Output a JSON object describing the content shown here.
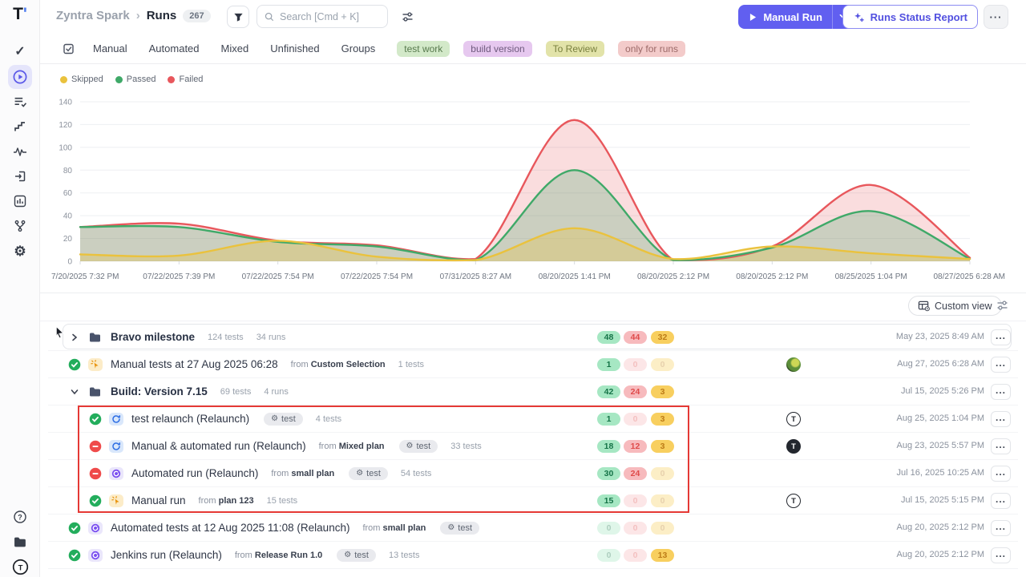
{
  "app": {
    "logo_letter": "T",
    "accent_color": "#615ff0"
  },
  "sidebar": {
    "items": [
      {
        "name": "tests",
        "icon": "check-icon",
        "active": false
      },
      {
        "name": "runs",
        "icon": "play-circle-icon",
        "active": true
      },
      {
        "name": "plans",
        "icon": "list-check-icon",
        "active": false
      },
      {
        "name": "steps",
        "icon": "steps-icon",
        "active": false
      },
      {
        "name": "pulse",
        "icon": "pulse-icon",
        "active": false
      },
      {
        "name": "imports",
        "icon": "sign-in-icon",
        "active": false
      },
      {
        "name": "analytics",
        "icon": "bar-chart-icon",
        "active": false
      },
      {
        "name": "branches",
        "icon": "branch-icon",
        "active": false
      },
      {
        "name": "settings",
        "icon": "gear-icon",
        "active": false
      }
    ],
    "bottom": [
      {
        "name": "help",
        "icon": "question-circle-icon"
      },
      {
        "name": "projects",
        "icon": "folder-icon"
      },
      {
        "name": "profile",
        "icon": "logo-badge-icon"
      }
    ]
  },
  "header": {
    "breadcrumb": {
      "project": "Zyntra Spark",
      "separator": "›",
      "page": "Runs",
      "count": "267"
    },
    "search": {
      "placeholder": "Search [Cmd + K]"
    },
    "buttons": {
      "manual_run": "Manual Run",
      "runs_status_report": "Runs Status Report",
      "more": "···"
    }
  },
  "tabs": {
    "items": [
      "Manual",
      "Automated",
      "Mixed",
      "Unfinished",
      "Groups"
    ],
    "tags": [
      {
        "label": "test work",
        "bg": "#d3e9c9",
        "color": "#587a4e"
      },
      {
        "label": "build version",
        "bg": "#e6c8ef",
        "color": "#6e5a7d"
      },
      {
        "label": "To Review",
        "bg": "#e2e3a9",
        "color": "#79803f"
      },
      {
        "label": "only for runs",
        "bg": "#f3cbca",
        "color": "#9c6a68"
      }
    ]
  },
  "chart_data": {
    "type": "area",
    "x_labels": [
      "7/20/2025 7:32 PM",
      "07/22/2025 7:39 PM",
      "07/22/2025 7:54 PM",
      "07/22/2025 7:54 PM",
      "07/31/2025 8:27 AM",
      "08/20/2025 1:41 PM",
      "08/20/2025 2:12 PM",
      "08/20/2025 2:12 PM",
      "08/25/2025 1:04 PM",
      "08/27/2025 6:28 AM"
    ],
    "yticks": [
      0,
      20,
      40,
      60,
      80,
      100,
      120,
      140
    ],
    "ylim": [
      0,
      140
    ],
    "grid": "horizontal",
    "legend_position": "top-left",
    "series": [
      {
        "name": "Skipped",
        "color": "#eac23d",
        "fill_opacity": 0.3,
        "values": [
          6,
          5,
          18,
          4,
          1,
          29,
          2,
          13,
          7,
          2
        ]
      },
      {
        "name": "Passed",
        "color": "#3fa968",
        "fill_opacity": 0.25,
        "values": [
          30,
          30,
          17,
          13,
          1,
          80,
          1,
          12,
          44,
          2
        ]
      },
      {
        "name": "Failed",
        "color": "#e8575c",
        "fill_opacity": 0.2,
        "values": [
          30,
          33,
          18,
          14,
          2,
          124,
          1,
          13,
          67,
          3
        ]
      }
    ]
  },
  "toolbar": {
    "custom_view": "Custom view"
  },
  "runs": {
    "rows": [
      {
        "kind": "folder",
        "chevron": "collapsed",
        "icon": "folder",
        "title": "Bravo milestone",
        "meta_tests": "124 tests",
        "meta_runs": "34 runs",
        "badges": [
          48,
          44,
          32
        ],
        "avatar": null,
        "date": "May 23, 2025 8:49 AM",
        "hover": true,
        "nested": false
      },
      {
        "kind": "run",
        "status": "passed",
        "icon": "manual",
        "title": "Manual tests at 27 Aug 2025 06:28",
        "from_plan": "Custom Selection",
        "tests": "1 tests",
        "badges": [
          1,
          0,
          0
        ],
        "avatar": "photo",
        "date": "Aug 27, 2025 6:28 AM",
        "nested": false
      },
      {
        "kind": "folder",
        "chevron": "expanded",
        "icon": "folder",
        "title": "Build: Version 7.15",
        "meta_tests": "69 tests",
        "meta_runs": "4 runs",
        "badges": [
          42,
          24,
          3
        ],
        "avatar": null,
        "date": "Jul 15, 2025 5:26 PM",
        "nested": false
      },
      {
        "kind": "run",
        "status": "passed",
        "icon": "relaunch",
        "title": "test relaunch (Relaunch)",
        "tag": "test",
        "tests": "4 tests",
        "badges": [
          1,
          0,
          3
        ],
        "avatar": "t-light",
        "date": "Aug 25, 2025 1:04 PM",
        "nested": true
      },
      {
        "kind": "run",
        "status": "failed",
        "icon": "relaunch",
        "title": "Manual & automated run (Relaunch)",
        "from_plan": "Mixed plan",
        "tag": "test",
        "tests": "33 tests",
        "badges": [
          18,
          12,
          3
        ],
        "avatar": "t-dark",
        "date": "Aug 23, 2025 5:57 PM",
        "nested": true
      },
      {
        "kind": "run",
        "status": "failed",
        "icon": "automated",
        "title": "Automated run (Relaunch)",
        "from_plan": "small plan",
        "tag": "test",
        "tests": "54 tests",
        "badges": [
          30,
          24,
          0
        ],
        "avatar": null,
        "date": "Jul 16, 2025 10:25 AM",
        "nested": true
      },
      {
        "kind": "run",
        "status": "passed",
        "icon": "manual",
        "title": "Manual run",
        "from_plan": "plan 123",
        "tests": "15 tests",
        "badges": [
          15,
          0,
          0
        ],
        "avatar": "t-light",
        "date": "Jul 15, 2025 5:15 PM",
        "nested": true
      },
      {
        "kind": "run",
        "status": "passed",
        "icon": "automated",
        "title": "Automated tests at 12 Aug 2025 11:08 (Relaunch)",
        "from_plan": "small plan",
        "tag": "test",
        "badges": [
          0,
          0,
          0
        ],
        "avatar": null,
        "date": "Aug 20, 2025 2:12 PM",
        "nested": false
      },
      {
        "kind": "run",
        "status": "passed",
        "icon": "automated",
        "title": "Jenkins run (Relaunch)",
        "from_plan": "Release Run 1.0",
        "tag": "test",
        "tests": "13 tests",
        "badges": [
          0,
          0,
          13
        ],
        "avatar": null,
        "date": "Aug 20, 2025 2:12 PM",
        "nested": false
      }
    ]
  },
  "status_colors": {
    "passed": "#23ad5c",
    "failed": "#ef4b4b"
  },
  "badge_colors": {
    "passed_bg": "#a6e7c3",
    "failed_bg": "#f7babd",
    "skipped_bg": "#f8cf5f"
  },
  "annotation": {
    "highlight_box_color": "#e53935"
  }
}
